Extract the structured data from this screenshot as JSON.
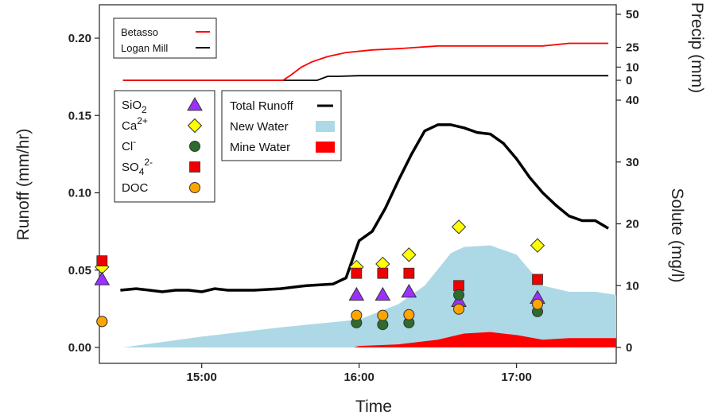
{
  "chart_data": {
    "type": "line",
    "xlabel": "Time",
    "ylabel_left": "Runoff (mm/hr)",
    "ylabel_right": "Solute (mg/l)",
    "ylabel_precip": "Precip (mm)",
    "x_ticks": [
      "15:00",
      "16:00",
      "17:00"
    ],
    "x_range": [
      "14:21",
      "17:38"
    ],
    "runoff_ticks": [
      "0.00",
      "0.05",
      "0.10",
      "0.15",
      "0.20"
    ],
    "runoff_ylim": [
      0,
      0.205
    ],
    "solute_ticks": [
      "0",
      "10",
      "20",
      "30",
      "40"
    ],
    "solute_ylim": [
      0,
      40
    ],
    "precip_ticks": [
      "0",
      "10",
      "25",
      "50"
    ],
    "precip_ylim": [
      0,
      50
    ],
    "colors": {
      "betasso": "#ff0000",
      "logan_mill": "#000000",
      "total_runoff": "#000000",
      "new_water": "#add8e6",
      "mine_water": "#ff0000",
      "sio2": "#9b30ff",
      "ca": "#ffff00",
      "cl": "#2e6b2e",
      "so4": "#ee0000",
      "doc": "#ffa500"
    },
    "precip_legend": [
      {
        "key": "betasso",
        "label": "Betasso"
      },
      {
        "key": "logan_mill",
        "label": "Logan Mill"
      }
    ],
    "precip_series": {
      "betasso": [
        [
          "14:30",
          0
        ],
        [
          "15:31",
          0
        ],
        [
          "15:34",
          4
        ],
        [
          "15:38",
          10
        ],
        [
          "15:42",
          14
        ],
        [
          "15:48",
          18
        ],
        [
          "15:55",
          21
        ],
        [
          "16:05",
          23
        ],
        [
          "16:15",
          24
        ],
        [
          "16:30",
          26
        ],
        [
          "16:50",
          26
        ],
        [
          "17:10",
          26
        ],
        [
          "17:20",
          28
        ],
        [
          "17:35",
          28
        ]
      ],
      "logan_mill": [
        [
          "14:30",
          0
        ],
        [
          "15:44",
          0
        ],
        [
          "15:48",
          3
        ],
        [
          "15:52",
          3
        ],
        [
          "16:00",
          3.5
        ],
        [
          "17:35",
          3.5
        ]
      ]
    },
    "total_runoff": [
      [
        "14:29",
        0.037
      ],
      [
        "14:35",
        0.038
      ],
      [
        "14:40",
        0.037
      ],
      [
        "14:45",
        0.036
      ],
      [
        "14:50",
        0.037
      ],
      [
        "14:55",
        0.037
      ],
      [
        "15:00",
        0.036
      ],
      [
        "15:05",
        0.038
      ],
      [
        "15:10",
        0.037
      ],
      [
        "15:20",
        0.037
      ],
      [
        "15:30",
        0.038
      ],
      [
        "15:40",
        0.04
      ],
      [
        "15:50",
        0.041
      ],
      [
        "15:55",
        0.045
      ],
      [
        "16:00",
        0.069
      ],
      [
        "16:05",
        0.075
      ],
      [
        "16:10",
        0.09
      ],
      [
        "16:15",
        0.108
      ],
      [
        "16:20",
        0.125
      ],
      [
        "16:25",
        0.14
      ],
      [
        "16:30",
        0.144
      ],
      [
        "16:35",
        0.144
      ],
      [
        "16:40",
        0.142
      ],
      [
        "16:45",
        0.139
      ],
      [
        "16:50",
        0.138
      ],
      [
        "16:55",
        0.132
      ],
      [
        "17:00",
        0.122
      ],
      [
        "17:05",
        0.11
      ],
      [
        "17:10",
        0.1
      ],
      [
        "17:15",
        0.092
      ],
      [
        "17:20",
        0.085
      ],
      [
        "17:25",
        0.082
      ],
      [
        "17:30",
        0.082
      ],
      [
        "17:35",
        0.077
      ]
    ],
    "new_water": [
      [
        "14:30",
        0.0
      ],
      [
        "15:00",
        0.007
      ],
      [
        "15:30",
        0.013
      ],
      [
        "16:00",
        0.018
      ],
      [
        "16:15",
        0.028
      ],
      [
        "16:25",
        0.04
      ],
      [
        "16:35",
        0.061
      ],
      [
        "16:40",
        0.065
      ],
      [
        "16:50",
        0.066
      ],
      [
        "17:00",
        0.06
      ],
      [
        "17:10",
        0.04
      ],
      [
        "17:20",
        0.036
      ],
      [
        "17:30",
        0.036
      ],
      [
        "17:38",
        0.034
      ]
    ],
    "mine_water": [
      [
        "15:58",
        0.0
      ],
      [
        "16:00",
        0.001
      ],
      [
        "16:15",
        0.002
      ],
      [
        "16:30",
        0.005
      ],
      [
        "16:40",
        0.009
      ],
      [
        "16:50",
        0.01
      ],
      [
        "17:00",
        0.008
      ],
      [
        "17:10",
        0.005
      ],
      [
        "17:20",
        0.006
      ],
      [
        "17:38",
        0.006
      ]
    ],
    "solute_legend": [
      {
        "key": "sio2",
        "base": "SiO",
        "sub": "2",
        "sup": "",
        "marker": "triangle"
      },
      {
        "key": "ca",
        "base": "Ca",
        "sub": "",
        "sup": "2+",
        "marker": "diamond"
      },
      {
        "key": "cl",
        "base": "Cl",
        "sub": "",
        "sup": "-",
        "marker": "circle"
      },
      {
        "key": "so4",
        "base": "SO",
        "sub": "4",
        "sup": "2-",
        "marker": "square"
      },
      {
        "key": "doc",
        "base": "DOC",
        "sub": "",
        "sup": "",
        "marker": "circle"
      }
    ],
    "runoff_legend": [
      {
        "key": "total_runoff",
        "label": "Total Runoff",
        "swatch": "line"
      },
      {
        "key": "new_water",
        "label": "New Water",
        "swatch": "fill"
      },
      {
        "key": "mine_water",
        "label": "Mine Water",
        "swatch": "fill"
      }
    ],
    "solute_times": [
      "14:22",
      "15:59",
      "16:09",
      "16:19",
      "16:38",
      "17:08"
    ],
    "solutes": {
      "ca": [
        13.0,
        13.0,
        13.5,
        15.0,
        19.5,
        16.5
      ],
      "so4": [
        14.0,
        12.0,
        12.0,
        12.0,
        10.0,
        11.0
      ],
      "sio2": [
        11.0,
        8.5,
        8.5,
        9.0,
        7.5,
        8.0
      ],
      "cl": [
        4.2,
        4.0,
        3.7,
        4.0,
        8.5,
        5.8
      ],
      "doc": [
        4.2,
        5.2,
        5.2,
        5.3,
        6.2,
        7.0
      ]
    }
  }
}
